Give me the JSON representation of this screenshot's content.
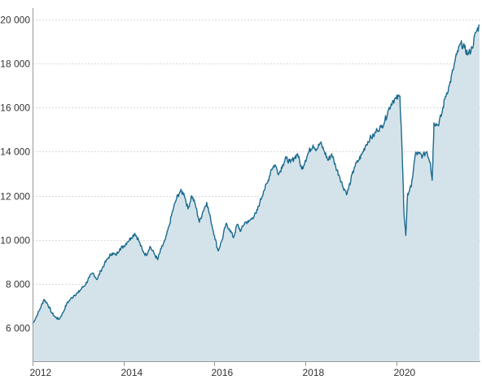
{
  "chart_data": {
    "type": "area",
    "title": "",
    "xlabel": "",
    "ylabel": "",
    "grid": "horizontal dashed",
    "legend": "none",
    "colors": {
      "line": "#1a6a8e",
      "fill": "#d4e3ea"
    },
    "xlim": [
      2012.0,
      2021.85
    ],
    "ylim": [
      4500,
      20500
    ],
    "x_ticks": [
      2012,
      2014,
      2016,
      2018,
      2020
    ],
    "x_tick_labels": [
      "2012",
      "2014",
      "2016",
      "2018",
      "2020"
    ],
    "y_ticks": [
      6000,
      8000,
      10000,
      12000,
      14000,
      16000,
      18000,
      20000
    ],
    "y_tick_labels": [
      "6 000",
      "8 000",
      "10 000",
      "12 000",
      "14 000",
      "16 000",
      "18 000",
      "20 000"
    ],
    "series": [
      {
        "x": [
          2012.0,
          2012.08,
          2012.17,
          2012.25,
          2012.33,
          2012.42,
          2012.5,
          2012.58,
          2012.67,
          2012.75,
          2012.83,
          2012.92,
          2013.0,
          2013.08,
          2013.17,
          2013.25,
          2013.33,
          2013.42,
          2013.5,
          2013.58,
          2013.67,
          2013.75,
          2013.83,
          2013.92,
          2014.0,
          2014.08,
          2014.17,
          2014.25,
          2014.33,
          2014.42,
          2014.5,
          2014.58,
          2014.67,
          2014.75,
          2014.83,
          2014.92,
          2015.0,
          2015.08,
          2015.17,
          2015.25,
          2015.33,
          2015.42,
          2015.5,
          2015.58,
          2015.67,
          2015.75,
          2015.83,
          2015.92,
          2016.0,
          2016.08,
          2016.17,
          2016.25,
          2016.33,
          2016.42,
          2016.5,
          2016.58,
          2016.67,
          2016.75,
          2016.83,
          2016.92,
          2017.0,
          2017.08,
          2017.17,
          2017.25,
          2017.33,
          2017.42,
          2017.5,
          2017.58,
          2017.67,
          2017.75,
          2017.83,
          2017.92,
          2018.0,
          2018.08,
          2018.17,
          2018.25,
          2018.33,
          2018.42,
          2018.5,
          2018.58,
          2018.67,
          2018.75,
          2018.83,
          2018.92,
          2019.0,
          2019.08,
          2019.17,
          2019.25,
          2019.33,
          2019.42,
          2019.5,
          2019.58,
          2019.67,
          2019.75,
          2019.83,
          2019.92,
          2020.0,
          2020.08,
          2020.12,
          2020.17,
          2020.21,
          2020.25,
          2020.33,
          2020.42,
          2020.5,
          2020.58,
          2020.67,
          2020.75,
          2020.79,
          2020.83,
          2020.92,
          2021.0,
          2021.08,
          2021.17,
          2021.25,
          2021.33,
          2021.42,
          2021.5,
          2021.58,
          2021.67,
          2021.75,
          2021.83
        ],
        "values": [
          6200,
          6500,
          6900,
          7300,
          7100,
          6700,
          6500,
          6400,
          6700,
          7100,
          7300,
          7500,
          7600,
          7800,
          8000,
          8300,
          8500,
          8200,
          8600,
          8900,
          9200,
          9400,
          9300,
          9600,
          9700,
          9900,
          10100,
          10300,
          10000,
          9500,
          9300,
          9700,
          9400,
          9100,
          9600,
          10000,
          10600,
          11300,
          11900,
          12200,
          12100,
          11400,
          12000,
          11600,
          10800,
          11300,
          11700,
          10900,
          10200,
          9500,
          10000,
          10700,
          10500,
          10100,
          10700,
          10400,
          10800,
          10800,
          11000,
          11200,
          11700,
          12200,
          12600,
          13200,
          13400,
          13000,
          13400,
          13700,
          13500,
          13700,
          13900,
          13200,
          13600,
          14000,
          14300,
          14100,
          14400,
          14000,
          13600,
          13900,
          13300,
          12900,
          12400,
          12100,
          12700,
          13300,
          13600,
          13900,
          14300,
          14600,
          14700,
          15000,
          15100,
          15400,
          15900,
          16300,
          16400,
          16500,
          14500,
          11200,
          10200,
          12100,
          12400,
          13900,
          13900,
          13800,
          14000,
          13500,
          12700,
          15300,
          15200,
          15700,
          16500,
          17000,
          17700,
          18400,
          18900,
          18700,
          18400,
          18700,
          19400,
          19700
        ]
      }
    ]
  }
}
